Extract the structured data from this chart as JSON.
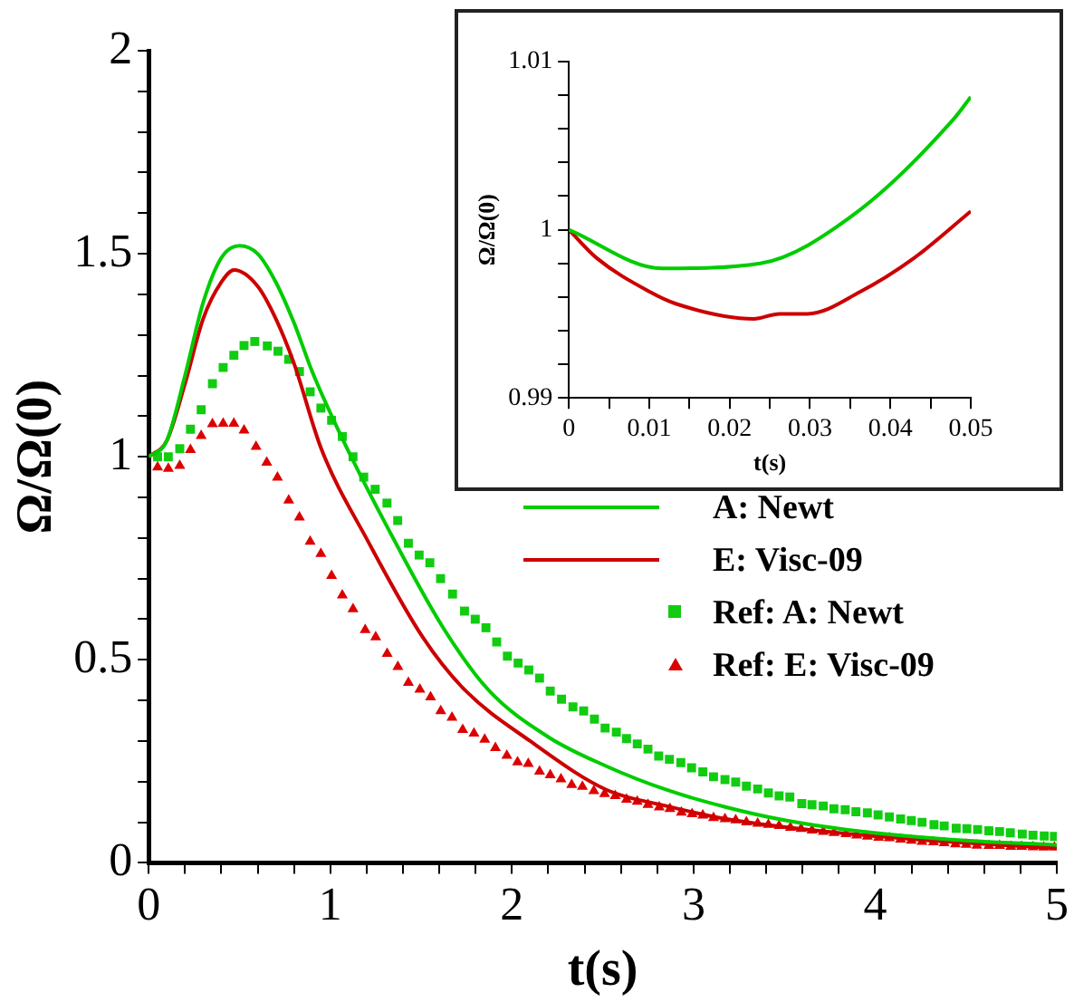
{
  "chart_data": [
    {
      "type": "line",
      "xlabel": "t(s)",
      "ylabel": "Ω/Ω(0)",
      "xlim": [
        0,
        5
      ],
      "ylim": [
        0,
        2
      ],
      "xticks": [
        0,
        {
          "value": 0.2,
          "label": null
        },
        {
          "value": 0.4,
          "label": null
        },
        {
          "value": 0.6,
          "label": null
        },
        {
          "value": 0.8,
          "label": null
        },
        1,
        {
          "value": 1.2,
          "label": null
        },
        {
          "value": 1.4,
          "label": null
        },
        {
          "value": 1.6,
          "label": null
        },
        {
          "value": 1.8,
          "label": null
        },
        2,
        {
          "value": 2.2,
          "label": null
        },
        {
          "value": 2.4,
          "label": null
        },
        {
          "value": 2.6,
          "label": null
        },
        {
          "value": 2.8,
          "label": null
        },
        3,
        {
          "value": 3.2,
          "label": null
        },
        {
          "value": 3.4,
          "label": null
        },
        {
          "value": 3.6,
          "label": null
        },
        {
          "value": 3.8,
          "label": null
        },
        4,
        {
          "value": 4.2,
          "label": null
        },
        {
          "value": 4.4,
          "label": null
        },
        {
          "value": 4.6,
          "label": null
        },
        {
          "value": 4.8,
          "label": null
        },
        5
      ],
      "yticks": [
        0,
        {
          "value": 0.1,
          "label": null
        },
        {
          "value": 0.2,
          "label": null
        },
        {
          "value": 0.3,
          "label": null
        },
        {
          "value": 0.4,
          "label": null
        },
        0.5,
        {
          "value": 0.6,
          "label": null
        },
        {
          "value": 0.7,
          "label": null
        },
        {
          "value": 0.8,
          "label": null
        },
        {
          "value": 0.9,
          "label": null
        },
        1,
        {
          "value": 1.1,
          "label": null
        },
        {
          "value": 1.2,
          "label": null
        },
        {
          "value": 1.3,
          "label": null
        },
        {
          "value": 1.4,
          "label": null
        },
        1.5,
        {
          "value": 1.6,
          "label": null
        },
        {
          "value": 1.7,
          "label": null
        },
        {
          "value": 1.8,
          "label": null
        },
        {
          "value": 1.9,
          "label": null
        },
        2
      ],
      "legend": "right",
      "series": [
        {
          "name": "A: Newt",
          "type": "line",
          "color": "#00cc00",
          "x": [
            0,
            0.1,
            0.2,
            0.3,
            0.4,
            0.5,
            0.6,
            0.7,
            0.8,
            0.9,
            1.05,
            1.31,
            1.62,
            1.87,
            2.2,
            2.52,
            2.85,
            3.18,
            3.5,
            3.84,
            4.4,
            5
          ],
          "values": [
            1,
            1.04,
            1.2,
            1.38,
            1.49,
            1.52,
            1.5,
            1.43,
            1.33,
            1.21,
            1.06,
            0.83,
            0.58,
            0.426,
            0.31,
            0.238,
            0.18,
            0.137,
            0.105,
            0.082,
            0.058,
            0.044
          ]
        },
        {
          "name": "E: Visc-09",
          "type": "line",
          "color": "#cc0000",
          "x": [
            0,
            0.1,
            0.2,
            0.3,
            0.4,
            0.47,
            0.6,
            0.7,
            0.8,
            0.95,
            1.21,
            1.51,
            1.74,
            2.1,
            2.52,
            2.85,
            3.18,
            3.84,
            4.4,
            5
          ],
          "values": [
            1,
            1.04,
            1.18,
            1.34,
            1.43,
            1.46,
            1.42,
            1.34,
            1.23,
            1.02,
            0.79,
            0.555,
            0.426,
            0.3,
            0.18,
            0.14,
            0.108,
            0.072,
            0.052,
            0.036
          ]
        },
        {
          "name": "Ref: A: Newt",
          "type": "scatter",
          "marker": "square",
          "color": "#11cc11",
          "x": [
            0.049,
            0.108,
            0.171,
            0.23,
            0.289,
            0.351,
            0.41,
            0.469,
            0.525,
            0.584,
            0.653,
            0.712,
            0.771,
            0.83,
            0.889,
            0.948,
            1.007,
            1.066,
            1.125,
            1.184,
            1.247,
            1.312,
            1.371,
            1.43,
            1.489,
            1.548,
            1.607,
            1.673,
            1.739,
            1.798,
            1.857,
            1.916,
            1.975,
            2.034,
            2.093,
            2.152,
            2.211,
            2.273,
            2.336,
            2.395,
            2.454,
            2.513,
            2.575,
            2.631,
            2.69,
            2.749,
            2.808,
            2.867,
            2.93,
            2.989,
            3.051,
            3.11,
            3.173,
            3.232,
            3.291,
            3.353,
            3.412,
            3.471,
            3.53,
            3.596,
            3.652,
            3.714,
            3.773,
            3.835,
            3.894,
            3.957,
            4.016,
            4.078,
            4.14,
            4.199,
            4.258,
            4.324,
            4.38,
            4.446,
            4.505,
            4.564,
            4.626,
            4.685,
            4.744,
            4.81,
            4.869,
            4.931,
            4.987
          ],
          "values": [
            1,
            1,
            1.02,
            1.068,
            1.116,
            1.18,
            1.22,
            1.25,
            1.274,
            1.284,
            1.273,
            1.26,
            1.24,
            1.21,
            1.16,
            1.12,
            1.09,
            1.05,
            1,
            0.95,
            0.92,
            0.886,
            0.843,
            0.787,
            0.758,
            0.739,
            0.7,
            0.662,
            0.62,
            0.6,
            0.579,
            0.544,
            0.509,
            0.492,
            0.475,
            0.455,
            0.423,
            0.403,
            0.384,
            0.374,
            0.354,
            0.332,
            0.322,
            0.306,
            0.293,
            0.28,
            0.263,
            0.255,
            0.247,
            0.234,
            0.224,
            0.212,
            0.205,
            0.199,
            0.189,
            0.182,
            0.172,
            0.165,
            0.162,
            0.146,
            0.143,
            0.14,
            0.133,
            0.131,
            0.126,
            0.123,
            0.118,
            0.113,
            0.108,
            0.104,
            0.1,
            0.094,
            0.091,
            0.085,
            0.084,
            0.082,
            0.079,
            0.077,
            0.074,
            0.071,
            0.068,
            0.066,
            0.065
          ]
        },
        {
          "name": "Ref: E: Visc-09",
          "type": "scatter",
          "marker": "triangle",
          "color": "#dd0000",
          "x": [
            0.049,
            0.108,
            0.171,
            0.23,
            0.289,
            0.351,
            0.41,
            0.469,
            0.525,
            0.591,
            0.65,
            0.709,
            0.771,
            0.83,
            0.889,
            0.948,
            1.007,
            1.066,
            1.125,
            1.192,
            1.25,
            1.313,
            1.372,
            1.43,
            1.493,
            1.552,
            1.608,
            1.67,
            1.729,
            1.791,
            1.85,
            1.909,
            1.972,
            2.031,
            2.09,
            2.152,
            2.211,
            2.27,
            2.329,
            2.388,
            2.451,
            2.51,
            2.569,
            2.631,
            2.69,
            2.749,
            2.811,
            2.87,
            2.933,
            2.992,
            3.051,
            3.11,
            3.173,
            3.232,
            3.291,
            3.353,
            3.412,
            3.471,
            3.533,
            3.592,
            3.652,
            3.714,
            3.773,
            3.839,
            3.898,
            3.957,
            4.019,
            4.078,
            4.14,
            4.199,
            4.258,
            4.321,
            4.38,
            4.442,
            4.501,
            4.56,
            4.626,
            4.685,
            4.747,
            4.806,
            4.869,
            4.928,
            4.987
          ],
          "values": [
            0.974,
            0.971,
            0.978,
            1.017,
            1.052,
            1.081,
            1.082,
            1.082,
            1.065,
            1.025,
            0.986,
            0.949,
            0.893,
            0.851,
            0.791,
            0.761,
            0.707,
            0.659,
            0.625,
            0.574,
            0.556,
            0.515,
            0.483,
            0.444,
            0.427,
            0.408,
            0.374,
            0.358,
            0.328,
            0.319,
            0.304,
            0.283,
            0.264,
            0.248,
            0.244,
            0.225,
            0.216,
            0.206,
            0.192,
            0.188,
            0.177,
            0.17,
            0.165,
            0.156,
            0.151,
            0.143,
            0.137,
            0.133,
            0.124,
            0.12,
            0.117,
            0.111,
            0.108,
            0.105,
            0.1,
            0.097,
            0.094,
            0.091,
            0.087,
            0.084,
            0.08,
            0.077,
            0.074,
            0.071,
            0.068,
            0.065,
            0.062,
            0.061,
            0.058,
            0.055,
            0.052,
            0.051,
            0.049,
            0.046,
            0.045,
            0.043,
            0.042,
            0.042,
            0.04,
            0.04,
            0.039,
            0.038,
            0.038
          ]
        }
      ]
    },
    {
      "type": "line",
      "xlabel": "t(s)",
      "ylabel": "Ω/Ω(0)",
      "xlim": [
        0,
        0.05
      ],
      "ylim": [
        0.99,
        1.01
      ],
      "xticks": [
        0,
        {
          "value": 0.005,
          "label": null
        },
        0.01,
        {
          "value": 0.015,
          "label": null
        },
        0.02,
        {
          "value": 0.025,
          "label": null
        },
        0.03,
        {
          "value": 0.035,
          "label": null
        },
        0.04,
        {
          "value": 0.045,
          "label": null
        },
        0.05
      ],
      "yticks": [
        0.99,
        {
          "value": 0.992,
          "label": null
        },
        {
          "value": 0.994,
          "label": null
        },
        {
          "value": 0.996,
          "label": null
        },
        {
          "value": 0.998,
          "label": null
        },
        1,
        {
          "value": 1.002,
          "label": null
        },
        {
          "value": 1.004,
          "label": null
        },
        {
          "value": 1.006,
          "label": null
        },
        {
          "value": 1.008,
          "label": null
        },
        1.01
      ],
      "series": [
        {
          "type": "line",
          "color": "#00cc00",
          "x": [
            0,
            0.0116,
            0.0238,
            0.0357,
            0.0479,
            0.05
          ],
          "values": [
            1,
            0.9977,
            0.998,
            1.001,
            1.0066,
            1.0079
          ]
        },
        {
          "type": "line",
          "color": "#cc0000",
          "x": [
            0,
            0.0035,
            0.0101,
            0.0133,
            0.023,
            0.0262,
            0.0297,
            0.0362,
            0.0429,
            0.05
          ],
          "values": [
            1,
            0.9983,
            0.9963,
            0.9956,
            0.9947,
            0.995,
            0.995,
            0.9963,
            0.9983,
            1.0011
          ]
        }
      ]
    }
  ]
}
